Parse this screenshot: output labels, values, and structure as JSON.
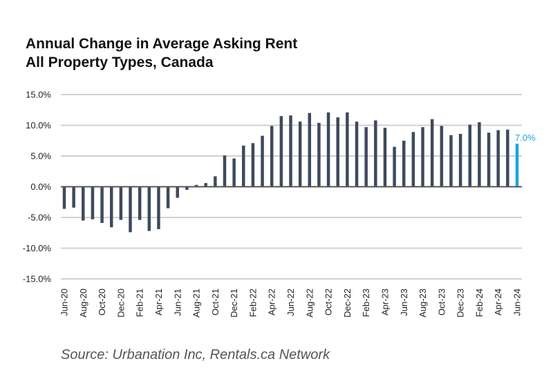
{
  "chart_data": {
    "type": "bar",
    "title_line1": "Annual Change in Average Asking Rent",
    "title_line2": "All Property Types, Canada",
    "source": "Source: Urbanation Inc, Rentals.ca Network",
    "ylim": [
      -15,
      15
    ],
    "yticks": [
      "15.0%",
      "10.0%",
      "5.0%",
      "0.0%",
      "-5.0%",
      "-10.0%",
      "-15.0%"
    ],
    "ytick_values": [
      15,
      10,
      5,
      0,
      -5,
      -10,
      -15
    ],
    "categories": [
      "Jun-20",
      "Jul-20",
      "Aug-20",
      "Sep-20",
      "Oct-20",
      "Nov-20",
      "Dec-20",
      "Jan-21",
      "Feb-21",
      "Mar-21",
      "Apr-21",
      "May-21",
      "Jun-21",
      "Jul-21",
      "Aug-21",
      "Sep-21",
      "Oct-21",
      "Nov-21",
      "Dec-21",
      "Jan-22",
      "Feb-22",
      "Mar-22",
      "Apr-22",
      "May-22",
      "Jun-22",
      "Jul-22",
      "Aug-22",
      "Sep-22",
      "Oct-22",
      "Nov-22",
      "Dec-22",
      "Jan-23",
      "Feb-23",
      "Mar-23",
      "Apr-23",
      "May-23",
      "Jun-23",
      "Jul-23",
      "Aug-23",
      "Sep-23",
      "Oct-23",
      "Nov-23",
      "Dec-23",
      "Jan-24",
      "Feb-24",
      "Mar-24",
      "Apr-24",
      "May-24",
      "Jun-24"
    ],
    "xtick_labels": [
      "Jun-20",
      "Aug-20",
      "Oct-20",
      "Dec-20",
      "Feb-21",
      "Apr-21",
      "Jun-21",
      "Aug-21",
      "Oct-21",
      "Dec-21",
      "Feb-22",
      "Apr-22",
      "Jun-22",
      "Aug-22",
      "Oct-22",
      "Dec-22",
      "Feb-23",
      "Apr-23",
      "Jun-23",
      "Aug-23",
      "Oct-23",
      "Dec-23",
      "Feb-24",
      "Apr-24",
      "Jun-24"
    ],
    "values": [
      -3.6,
      -3.4,
      -5.5,
      -5.3,
      -5.9,
      -6.6,
      -5.4,
      -7.4,
      -5.4,
      -7.2,
      -6.9,
      -3.5,
      -1.8,
      -0.5,
      0.3,
      0.6,
      1.7,
      5.1,
      4.6,
      6.7,
      7.1,
      8.3,
      9.9,
      11.5,
      11.6,
      10.6,
      12.0,
      10.4,
      12.1,
      11.3,
      12.1,
      10.6,
      9.7,
      10.8,
      9.6,
      6.5,
      7.5,
      8.9,
      9.7,
      11.0,
      9.9,
      8.4,
      8.6,
      10.1,
      10.5,
      8.8,
      9.2,
      9.3,
      7.0
    ],
    "highlight_label": "7.0%",
    "colors": {
      "bar": "#3e4a5c",
      "highlight": "#1aa6dc",
      "grid": "#d0d0d0",
      "zero_line": "#555555"
    },
    "grid": true
  }
}
